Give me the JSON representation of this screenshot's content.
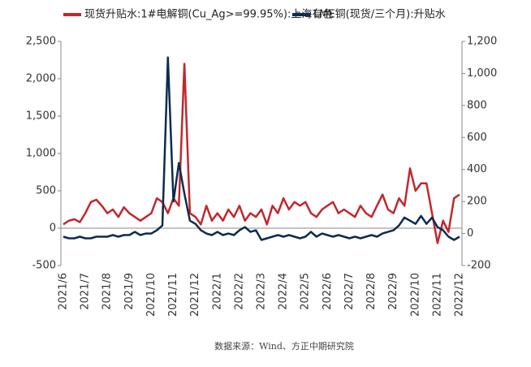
{
  "chart_data": {
    "type": "line",
    "source": "数据来源：Wind、方正中期研究院",
    "categories": [
      "2021/6",
      null,
      null,
      null,
      "2021/7",
      null,
      null,
      null,
      "2021/8",
      null,
      null,
      null,
      "2021/9",
      null,
      null,
      null,
      "2021/10",
      null,
      null,
      null,
      "2021/11",
      null,
      null,
      null,
      "2021/12",
      null,
      null,
      null,
      "2022/1",
      null,
      null,
      null,
      "2022/2",
      null,
      null,
      null,
      "2022/3",
      null,
      null,
      null,
      "2022/4",
      null,
      null,
      null,
      "2022/5",
      null,
      null,
      null,
      "2022/6",
      null,
      null,
      null,
      "2022/7",
      null,
      null,
      null,
      "2022/8",
      null,
      null,
      null,
      "2022/9",
      null,
      null,
      null,
      "2022/10",
      null,
      null,
      null,
      "2022/11",
      null,
      null,
      null,
      "2022/12"
    ],
    "series": [
      {
        "name": "现货升贴水:1#电解铜(Cu_Ag>=99.95%):上海有色",
        "color": "#c0282d",
        "axis": "y",
        "values": [
          50,
          100,
          120,
          80,
          200,
          350,
          380,
          300,
          200,
          250,
          150,
          280,
          200,
          150,
          100,
          150,
          200,
          400,
          350,
          200,
          400,
          300,
          2200,
          200,
          150,
          50,
          300,
          100,
          200,
          100,
          250,
          150,
          300,
          100,
          200,
          150,
          250,
          50,
          300,
          200,
          400,
          250,
          350,
          300,
          350,
          200,
          150,
          250,
          300,
          350,
          200,
          250,
          200,
          150,
          300,
          200,
          150,
          300,
          450,
          250,
          200,
          400,
          300,
          800,
          500,
          600,
          600,
          200,
          -200,
          100,
          -50,
          400,
          450
        ]
      },
      {
        "name": "LME铜(现货/三个月):升贴水",
        "color": "#0d2b4e",
        "axis": "y2",
        "values": [
          -20,
          -30,
          -30,
          -20,
          -30,
          -30,
          -20,
          -20,
          -20,
          -10,
          -20,
          -10,
          -10,
          10,
          -10,
          0,
          0,
          20,
          50,
          1100,
          200,
          440,
          250,
          80,
          60,
          20,
          0,
          -10,
          10,
          -10,
          0,
          -10,
          20,
          40,
          10,
          20,
          -40,
          -30,
          -20,
          -10,
          -20,
          -10,
          -20,
          -30,
          -20,
          10,
          -20,
          0,
          -10,
          -20,
          -10,
          -20,
          -30,
          -20,
          -30,
          -20,
          -10,
          -20,
          0,
          10,
          20,
          50,
          100,
          80,
          60,
          110,
          60,
          100,
          40,
          20,
          -20,
          -40,
          -20
        ]
      }
    ],
    "ylim": [
      -500,
      2500
    ],
    "yticks": [
      -500,
      0,
      500,
      {
        "value": 1000,
        "label": "1,000"
      },
      {
        "value": 1500,
        "label": "1,500"
      },
      {
        "value": 2000,
        "label": "2,000"
      },
      {
        "value": 2500,
        "label": "2,500"
      }
    ],
    "y2lim": [
      -200,
      1200
    ],
    "y2ticks": [
      -200,
      0,
      200,
      400,
      600,
      800,
      {
        "value": 1000,
        "label": "1,000"
      },
      {
        "value": 1200,
        "label": "1,200"
      }
    ],
    "grid": false,
    "legend": "top"
  }
}
